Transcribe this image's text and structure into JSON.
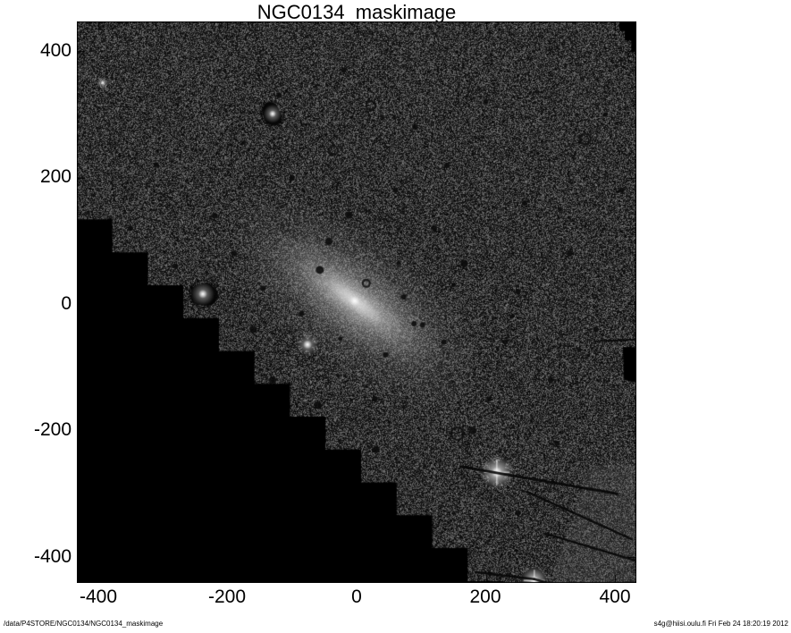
{
  "title": "NGC0134_maskimage",
  "axes": {
    "x_tick_labels": [
      "-400",
      "-200",
      "0",
      "200",
      "400"
    ],
    "y_tick_labels": [
      "400",
      "200",
      "0",
      "-200",
      "-400"
    ]
  },
  "footer": {
    "left_path": "/data/P4STORE/NGC0134/NGC0134_maskimage",
    "right_stamp": "s4g@hiisi.oulu.fi  Fri Feb 24 18:20:19 2012"
  },
  "chart_data": {
    "type": "heatmap",
    "title": "NGC0134_maskimage",
    "xlabel": "",
    "ylabel": "",
    "xlim": [
      -433,
      433
    ],
    "ylim": [
      -441,
      447
    ],
    "x_ticks": [
      -400,
      -200,
      0,
      200,
      400
    ],
    "y_ticks": [
      400,
      200,
      0,
      -200,
      -400
    ],
    "grid": false,
    "legend": false,
    "colormap": "grayscale",
    "background_outside_plot": "#ffffff",
    "blank_fill_color": "#000000",
    "description": "Masked Spitzer S4G mosaic of edge-on spiral galaxy NGC 134 shown as speckled grayscale noise field; rotated mosaic edges leave black stair-stepped blank regions in the lower-left, a notch in the top-right corner and a small blank patch on the right edge.",
    "galaxy": {
      "center_x": -3,
      "center_y": 5,
      "position_angle_deg": 36.2,
      "halo_a": 230,
      "halo_b": 105,
      "disk_a": 160,
      "disk_b": 58,
      "inner_a": 100,
      "inner_b": 30,
      "bar_a": 55,
      "bar_b": 15,
      "core_r": 8
    },
    "masked_stars": [
      {
        "x": -393,
        "y": 350,
        "core_r": 2.5,
        "blob_r": 9,
        "type": "fuzzy"
      },
      {
        "x": -130,
        "y": 301,
        "core_r": 4,
        "blob_r": 11,
        "type": "ringed"
      },
      {
        "x": -238,
        "y": 16,
        "core_r": 5,
        "blob_r": 13,
        "type": "ringed"
      },
      {
        "x": -76,
        "y": -64,
        "core_r": 5,
        "blob_r": 12,
        "type": "spiky"
      },
      {
        "x": 217,
        "y": -266,
        "core_r": 6,
        "blob_r": 20,
        "type": "bright-spiky"
      },
      {
        "x": 275,
        "y": -437,
        "core_r": 5,
        "blob_r": 13,
        "type": "bright"
      }
    ],
    "mask_rings": [
      [
        15,
        33,
        4
      ],
      [
        22,
        314,
        5
      ],
      [
        354,
        261,
        6
      ],
      [
        156,
        -205,
        7
      ],
      [
        -36,
        243,
        5
      ]
    ],
    "mask_dots": [
      [
        -57,
        54,
        4.5
      ],
      [
        73,
        11,
        3
      ],
      [
        -43,
        99,
        4
      ],
      [
        89,
        -31,
        3
      ],
      [
        102,
        -33,
        3
      ],
      [
        -12,
        141,
        4
      ],
      [
        167,
        64,
        4
      ],
      [
        -130,
        -120,
        4
      ],
      [
        205,
        -150,
        3
      ],
      [
        -190,
        80,
        3
      ],
      [
        60,
        180,
        3
      ],
      [
        -100,
        200,
        3
      ],
      [
        230,
        -60,
        3
      ],
      [
        120,
        120,
        3
      ],
      [
        -220,
        140,
        3
      ],
      [
        250,
        20,
        3
      ],
      [
        300,
        -120,
        3
      ],
      [
        -280,
        60,
        3
      ],
      [
        180,
        -200,
        4
      ],
      [
        140,
        220,
        3
      ],
      [
        -160,
        -40,
        4
      ],
      [
        90,
        280,
        3
      ],
      [
        -60,
        -160,
        4
      ],
      [
        30,
        -230,
        4
      ],
      [
        260,
        160,
        3
      ],
      [
        330,
        80,
        3
      ],
      [
        -310,
        220,
        3
      ],
      [
        370,
        -40,
        3
      ],
      [
        -250,
        -90,
        3
      ],
      [
        200,
        320,
        3
      ],
      [
        -350,
        120,
        3
      ],
      [
        310,
        -220,
        3
      ],
      [
        -20,
        370,
        3
      ],
      [
        250,
        -330,
        3
      ],
      [
        90,
        -350,
        3
      ],
      [
        -120,
        330,
        3
      ],
      [
        410,
        180,
        3
      ],
      [
        45,
        -80,
        3
      ],
      [
        -145,
        25,
        3
      ],
      [
        135,
        -60,
        3
      ],
      [
        28,
        -150,
        3
      ],
      [
        -85,
        -15,
        3
      ],
      [
        240,
        -20,
        2.5
      ],
      [
        65,
        65,
        2.5
      ],
      [
        -25,
        -55,
        2.5
      ],
      [
        315,
        150,
        2.5
      ],
      [
        -175,
        255,
        2.5
      ],
      [
        385,
        300,
        2.5
      ],
      [
        -320,
        -60,
        2.5
      ],
      [
        150,
        30,
        2.5
      ]
    ],
    "dark_streaks": [
      [
        161,
        -257,
        403,
        -300,
        3
      ],
      [
        264,
        -297,
        426,
        -372,
        2.5
      ],
      [
        292,
        -363,
        433,
        -406,
        2.5
      ],
      [
        184,
        -424,
        275,
        -435,
        2.5
      ],
      [
        275,
        -435,
        361,
        -459,
        2.5
      ],
      [
        368,
        -59,
        433,
        -56,
        2
      ]
    ],
    "blank_regions": {
      "staircase": {
        "start_x": -433,
        "start_y": 134,
        "step_dx": 55,
        "step_dy": 52,
        "steps": 12
      },
      "top_right_notch": [
        [
          407,
          447
        ],
        [
          433,
          447
        ],
        [
          433,
          399
        ],
        [
          425,
          399
        ],
        [
          425,
          417
        ],
        [
          415,
          417
        ],
        [
          415,
          432
        ],
        [
          407,
          432
        ]
      ],
      "right_edge_patch": [
        [
          412,
          -68
        ],
        [
          433,
          -68
        ],
        [
          433,
          -124
        ],
        [
          414,
          -120
        ]
      ]
    },
    "smooth_band_polygon": [
      [
        361,
        -255
      ],
      [
        433,
        -255
      ],
      [
        433,
        -441
      ],
      [
        300,
        -441
      ]
    ]
  }
}
